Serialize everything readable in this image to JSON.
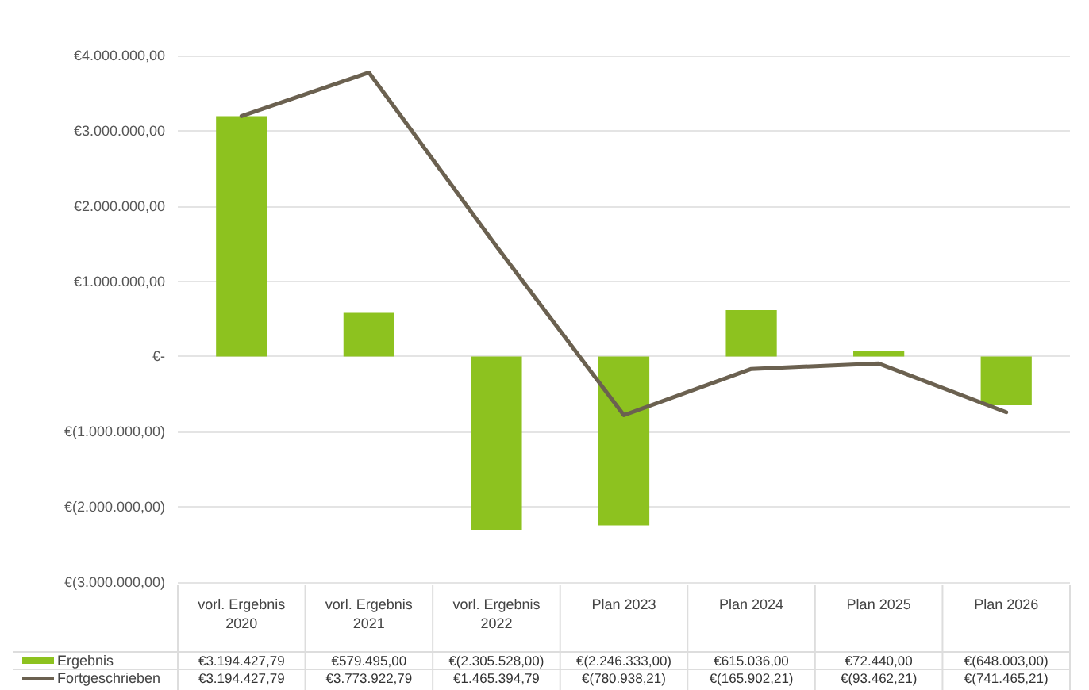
{
  "chart_data": {
    "type": "bar",
    "categories": [
      "vorl. Ergebnis\n2020",
      "vorl. Ergebnis\n2021",
      "vorl. Ergebnis\n2022",
      "Plan 2023",
      "Plan 2024",
      "Plan 2025",
      "Plan 2026"
    ],
    "series": [
      {
        "name": "Ergebnis",
        "color": "#8dc21f",
        "values": [
          3194427.79,
          579495.0,
          -2305528.0,
          -2246333.0,
          615036.0,
          72440.0,
          -648003.0
        ],
        "value_labels": [
          "€3.194.427,79",
          "€579.495,00",
          "€(2.305.528,00)",
          "€(2.246.333,00)",
          "€615.036,00",
          "€72.440,00",
          "€(648.003,00)"
        ]
      },
      {
        "name": "Fortgeschrieben",
        "type": "line",
        "color": "#6b6150",
        "values": [
          3194427.79,
          3773922.79,
          1465394.79,
          -780938.21,
          -165902.21,
          -93462.21,
          -741465.21
        ],
        "value_labels": [
          "€3.194.427,79",
          "€3.773.922,79",
          "€1.465.394,79",
          "€(780.938,21)",
          "€(165.902,21)",
          "€(93.462,21)",
          "€(741.465,21)"
        ]
      }
    ],
    "ylim": [
      -3000000,
      4000000
    ],
    "yticks": [
      {
        "value": -3000000,
        "label": "€(3.000.000,00)"
      },
      {
        "value": -2000000,
        "label": "€(2.000.000,00)"
      },
      {
        "value": -1000000,
        "label": "€(1.000.000,00)"
      },
      {
        "value": 0,
        "label": "€-"
      },
      {
        "value": 1000000,
        "label": "€1.000.000,00"
      },
      {
        "value": 2000000,
        "label": "€2.000.000,00"
      },
      {
        "value": 3000000,
        "label": "€3.000.000,00"
      },
      {
        "value": 4000000,
        "label": "€4.000.000,00"
      }
    ],
    "grid": "y",
    "legend": "bottom",
    "marker": "none",
    "line_style": "solid"
  }
}
